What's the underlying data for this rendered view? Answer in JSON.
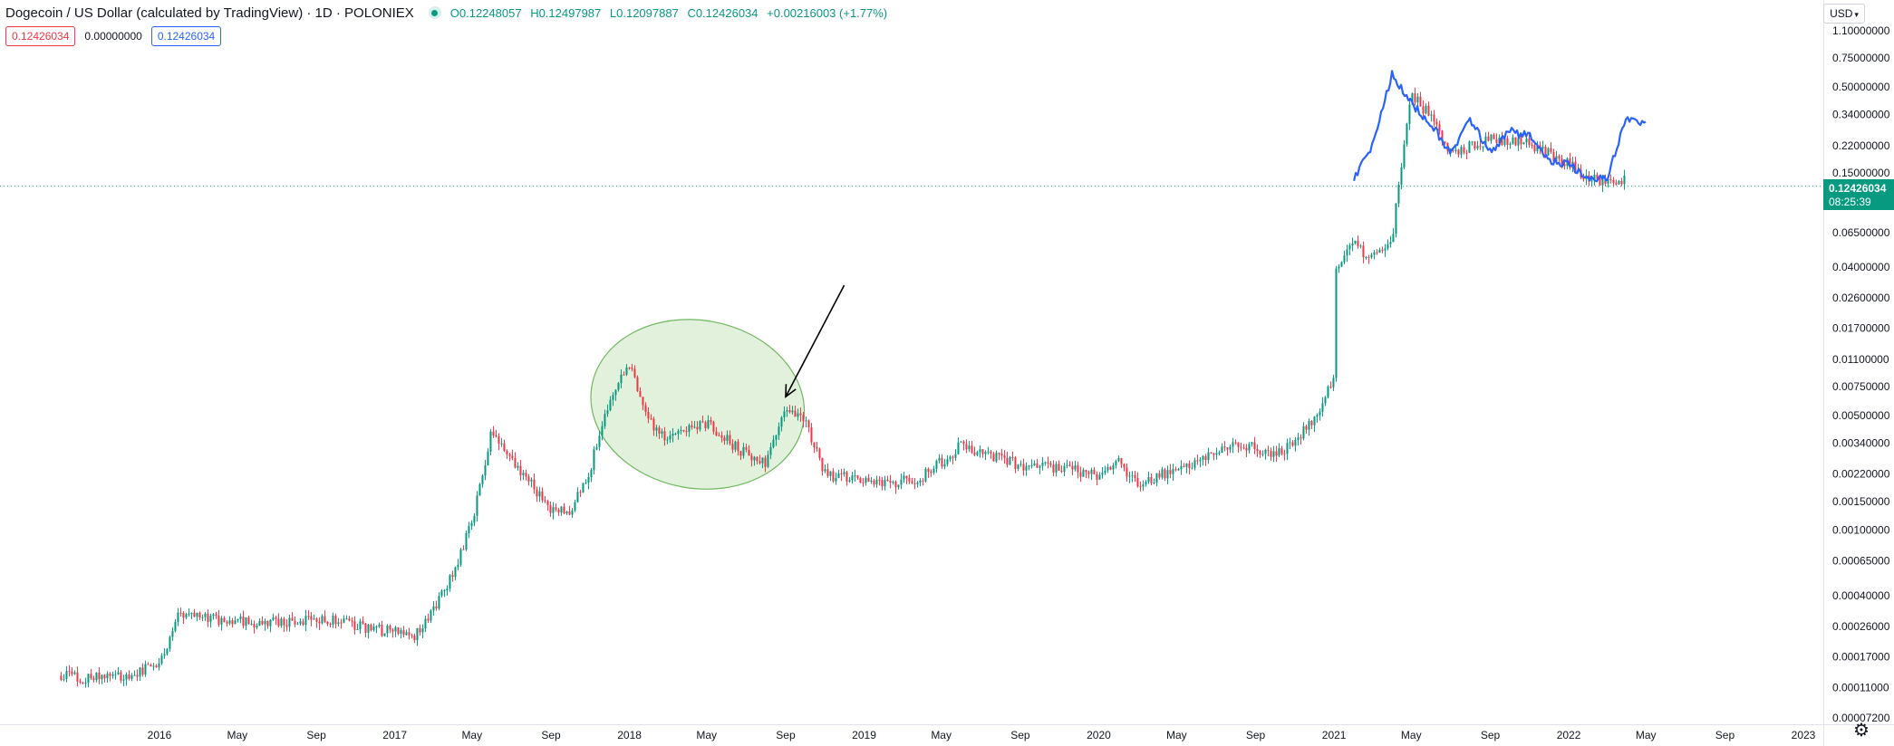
{
  "header": {
    "symbol": "Dogecoin / US Dollar (calculated by TradingView) · 1D · POLONIEX",
    "ohlc": {
      "o_label": "O",
      "o_value": "0.12248057",
      "h_label": "H",
      "h_value": "0.12497987",
      "l_label": "L",
      "l_value": "0.12097887",
      "c_label": "C",
      "c_value": "0.12426034",
      "change": "+0.00216003 (+1.77%)"
    }
  },
  "values_row": {
    "red_value": "0.12426034",
    "plain_value": "0.00000000",
    "blue_value": "0.12426034"
  },
  "currency": "USD",
  "price_tag": {
    "price": "0.12426034",
    "countdown": "08:25:39"
  },
  "colors": {
    "up": "#089981",
    "down": "#f23645",
    "overlay": "#2962ff",
    "ellipse_fill": "#c8e6c0",
    "ellipse_stroke": "#6fb85f",
    "axis_text": "#131722",
    "grid_line": "#e0e3eb"
  },
  "icons": {
    "settings": "gear-icon",
    "status": "market-open-dot-icon",
    "dropdown": "chevron-down-icon"
  },
  "chart_data": {
    "type": "candlestick",
    "scale": "log",
    "y_tick_labels": [
      "1.10000000",
      "0.75000000",
      "0.50000000",
      "0.34000000",
      "0.22000000",
      "0.15000000",
      "0.06500000",
      "0.04000000",
      "0.02600000",
      "0.01700000",
      "0.01100000",
      "0.00750000",
      "0.00500000",
      "0.00340000",
      "0.00220000",
      "0.00150000",
      "0.00100000",
      "0.00065000",
      "0.00040000",
      "0.00026000",
      "0.00017000",
      "0.00011000",
      "0.00007200"
    ],
    "y_tick_values": [
      1.1,
      0.75,
      0.5,
      0.34,
      0.22,
      0.15,
      0.065,
      0.04,
      0.026,
      0.017,
      0.011,
      0.0075,
      0.005,
      0.0034,
      0.0022,
      0.0015,
      0.001,
      0.00065,
      0.0004,
      0.00026,
      0.00017,
      0.00011,
      7.2e-05
    ],
    "x_tick_labels": [
      "2016",
      "May",
      "Sep",
      "2017",
      "May",
      "Sep",
      "2018",
      "May",
      "Sep",
      "2019",
      "May",
      "Sep",
      "2020",
      "May",
      "Sep",
      "2021",
      "May",
      "Sep",
      "2022",
      "May",
      "Sep",
      "2023"
    ],
    "x_ticks": [
      "2016-01",
      "2016-05",
      "2016-09",
      "2017-01",
      "2017-05",
      "2017-09",
      "2018-01",
      "2018-05",
      "2018-09",
      "2019-01",
      "2019-05",
      "2019-09",
      "2020-01",
      "2020-05",
      "2020-09",
      "2021-01",
      "2021-05",
      "2021-09",
      "2022-01",
      "2022-05",
      "2022-09",
      "2023-01"
    ],
    "x_range": [
      "2015-08",
      "2023-01"
    ],
    "series": [
      {
        "name": "",
        "style": "candles",
        "x": [
          "2015-08",
          "2015-09",
          "2015-11",
          "2016-01",
          "2016-02",
          "2016-04",
          "2016-06",
          "2016-08",
          "2016-10",
          "2016-12",
          "2017-02",
          "2017-03",
          "2017-04",
          "2017-05",
          "2017-06",
          "2017-07",
          "2017-08",
          "2017-09",
          "2017-10",
          "2017-11",
          "2017-12",
          "2018-01",
          "2018-02",
          "2018-03",
          "2018-05",
          "2018-07",
          "2018-08",
          "2018-09",
          "2018-10",
          "2018-11",
          "2018-12",
          "2019-02",
          "2019-04",
          "2019-06",
          "2019-07",
          "2019-09",
          "2019-11",
          "2020-01",
          "2020-02",
          "2020-03",
          "2020-05",
          "2020-07",
          "2020-08",
          "2020-10",
          "2020-12",
          "2021-01",
          "2021-01",
          "2021-02",
          "2021-03",
          "2021-04",
          "2021-05",
          "2021-06",
          "2021-07",
          "2021-09",
          "2021-11",
          "2022-01",
          "2022-02",
          "2022-03"
        ],
        "close": [
          0.00013,
          0.000125,
          0.00013,
          0.00015,
          0.00032,
          0.00029,
          0.00027,
          0.00028,
          0.00028,
          0.00025,
          0.00023,
          0.00033,
          0.00055,
          0.0011,
          0.0042,
          0.0026,
          0.0019,
          0.0013,
          0.0013,
          0.0024,
          0.0063,
          0.0105,
          0.0047,
          0.0036,
          0.0045,
          0.0029,
          0.0026,
          0.0058,
          0.0046,
          0.0022,
          0.0021,
          0.0019,
          0.0021,
          0.0033,
          0.003,
          0.0025,
          0.0024,
          0.0022,
          0.0026,
          0.0019,
          0.0024,
          0.0029,
          0.0035,
          0.0028,
          0.0046,
          0.0086,
          0.037,
          0.055,
          0.045,
          0.06,
          0.45,
          0.33,
          0.2,
          0.24,
          0.23,
          0.17,
          0.14,
          0.135
        ]
      },
      {
        "name": "",
        "style": "line",
        "x": [
          "2021-02",
          "2021-03",
          "2021-04",
          "2021-05",
          "2021-06",
          "2021-07",
          "2021-08",
          "2021-09",
          "2021-10",
          "2021-11",
          "2021-12",
          "2022-01",
          "2022-02",
          "2022-03",
          "2022-04",
          "2022-05"
        ],
        "values": [
          0.14,
          0.22,
          0.6,
          0.4,
          0.3,
          0.2,
          0.32,
          0.2,
          0.27,
          0.25,
          0.18,
          0.17,
          0.14,
          0.14,
          0.32,
          0.3
        ]
      }
    ],
    "annotations": [
      {
        "type": "ellipse",
        "x_from": "2017-11",
        "x_to": "2018-10",
        "y_low": 0.0018,
        "y_high": 0.019
      },
      {
        "type": "arrow",
        "from_x": "2018-12",
        "from_y": 0.031,
        "to_x": "2018-09",
        "to_y": 0.0065
      }
    ],
    "current_price": 0.12426034,
    "grid": false
  }
}
